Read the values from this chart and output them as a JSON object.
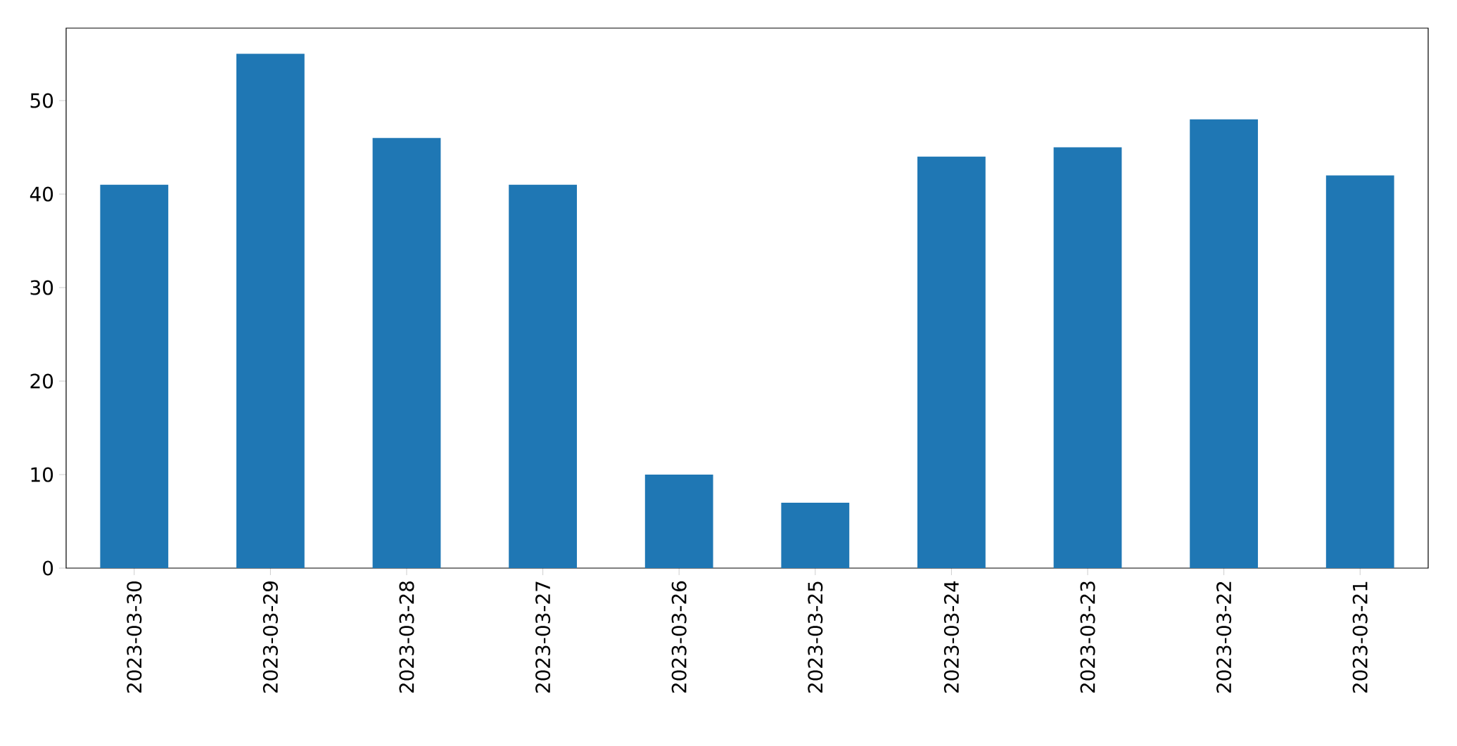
{
  "chart_data": {
    "type": "bar",
    "categories": [
      "2023-03-30",
      "2023-03-29",
      "2023-03-28",
      "2023-03-27",
      "2023-03-26",
      "2023-03-25",
      "2023-03-24",
      "2023-03-23",
      "2023-03-22",
      "2023-03-21"
    ],
    "values": [
      41,
      55,
      46,
      41,
      10,
      7,
      44,
      45,
      48,
      42
    ],
    "color": "#1f77b4",
    "ylim": [
      0,
      57.75
    ],
    "yticks": [
      0,
      10,
      20,
      30,
      40,
      50
    ]
  }
}
